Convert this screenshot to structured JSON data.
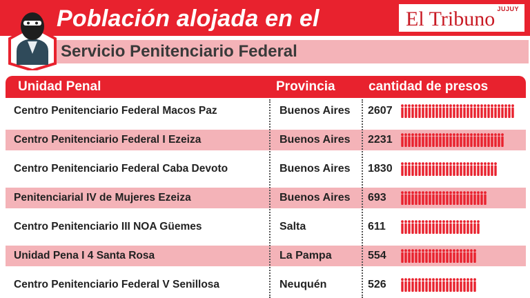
{
  "header": {
    "title_line1": "Población alojada en el",
    "title_line2": "Servicio Penitenciario Federal",
    "logo_text": "El Tribuno",
    "logo_region": "JUJUY"
  },
  "colors": {
    "brand_red": "#e8222e",
    "row_pink": "#f4b3b8",
    "icon_red": "#e8222e"
  },
  "chart_data": {
    "type": "table",
    "columns": [
      "Unidad Penal",
      "Provincia",
      "cantidad de presos"
    ],
    "rows": [
      {
        "unidad": "Centro Penitenciario Federal Macos Paz",
        "provincia": "Buenos Aires",
        "presos": "2607",
        "value": 2607
      },
      {
        "unidad": "Centro Penitenciario Federal  I Ezeiza",
        "provincia": "Buenos Aires",
        "presos": "2231",
        "value": 2231
      },
      {
        "unidad": "Centro Penitenciario Federal Caba Devoto",
        "provincia": "Buenos Aires",
        "presos": "1830",
        "value": 1830
      },
      {
        "unidad": "Penitenciarial IV de Mujeres Ezeiza",
        "provincia": "Buenos Aires",
        "presos": "693",
        "value": 693
      },
      {
        "unidad": "Centro Penitenciario III NOA Güemes",
        "provincia": "Salta",
        "presos": "611",
        "value": 611
      },
      {
        "unidad": "Unidad Pena I  4 Santa Rosa",
        "provincia": "La Pampa",
        "presos": "554",
        "value": 554
      },
      {
        "unidad": "Centro Penitenciario Federal V Senillosa",
        "provincia": "Neuquén",
        "presos": "526",
        "value": 526
      }
    ],
    "pictogram_counts": [
      33,
      30,
      28,
      25,
      23,
      22,
      22
    ]
  }
}
